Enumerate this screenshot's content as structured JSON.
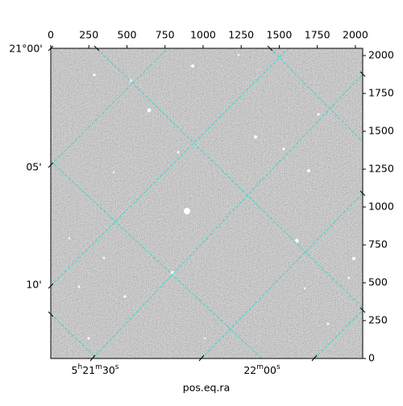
{
  "chart_data": {
    "type": "image",
    "xlabel": "pos.eq.ra",
    "xlim": [
      0,
      2048
    ],
    "xticks": [
      0,
      250,
      500,
      750,
      1000,
      1250,
      1500,
      1750,
      2000
    ],
    "ylim": [
      0,
      2048
    ],
    "yticks": [
      0,
      250,
      500,
      750,
      1000,
      1250,
      1500,
      1750,
      2000
    ],
    "dec_labels": [
      "21°00'",
      "05'",
      "10'"
    ],
    "ra_labels": [
      [
        "5",
        "h",
        "21",
        "m",
        "30",
        "s"
      ],
      [
        "22",
        "m",
        "00",
        "s"
      ]
    ]
  }
}
